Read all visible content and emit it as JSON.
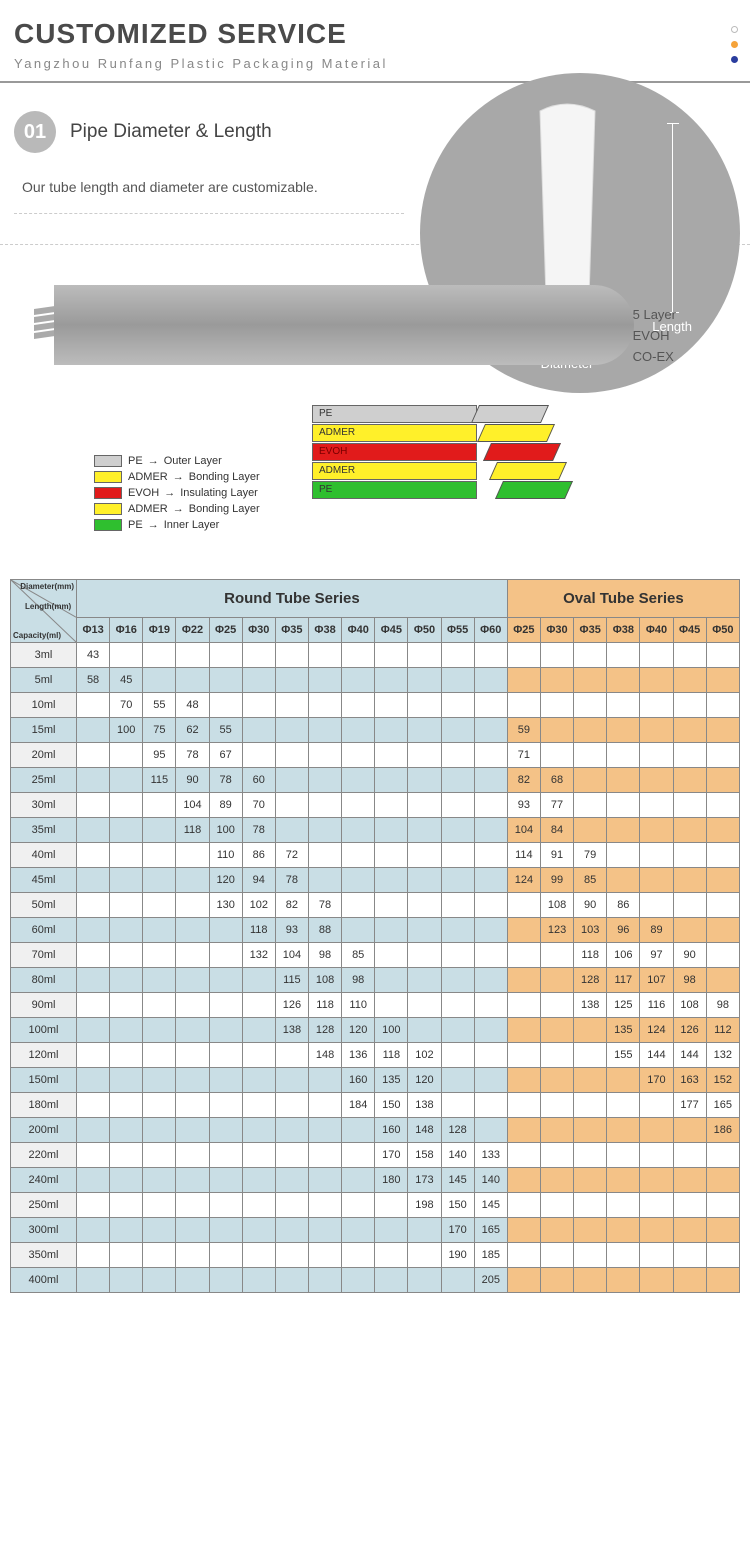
{
  "header": {
    "title": "CUSTOMIZED SERVICE",
    "subtitle": "Yangzhou Runfang Plastic Packaging Material"
  },
  "section1": {
    "num": "01",
    "title": "Pipe Diameter & Length",
    "desc": "Our tube length and diameter are customizable.",
    "dim_length": "Length",
    "dim_diameter": "Diameter"
  },
  "sideLabels": {
    "l1": "5 Layer",
    "l2": "EVOH",
    "l3": "CO-EX"
  },
  "layerColors": {
    "pe": "#cfcfcf",
    "admer": "#fff02a",
    "evoh": "#e11b1b",
    "inner": "#2fbf2f"
  },
  "peel": [
    {
      "label": "PE",
      "color": "#cfcfcf",
      "text": "#333"
    },
    {
      "label": "ADMER",
      "color": "#fff02a",
      "text": "#333"
    },
    {
      "label": "EVOH",
      "color": "#e11b1b",
      "text": "#7a0000"
    },
    {
      "label": "ADMER",
      "color": "#fff02a",
      "text": "#333"
    },
    {
      "label": "PE",
      "color": "#2fbf2f",
      "text": "#333"
    }
  ],
  "legend": [
    {
      "sw": "#cfcfcf",
      "name": "PE",
      "desc": "Outer Layer"
    },
    {
      "sw": "#fff02a",
      "name": "ADMER",
      "desc": "Bonding Layer"
    },
    {
      "sw": "#e11b1b",
      "name": "EVOH",
      "desc": "Insulating Layer"
    },
    {
      "sw": "#fff02a",
      "name": "ADMER",
      "desc": "Bonding Layer"
    },
    {
      "sw": "#2fbf2f",
      "name": "PE",
      "desc": "Inner Layer"
    }
  ],
  "table": {
    "corner": {
      "c1": "Diameter(mm)",
      "c2": "Length(mm)",
      "c3": "Capacity(ml)"
    },
    "roundTitle": "Round Tube Series",
    "ovalTitle": "Oval Tube Series",
    "roundCols": [
      "Φ13",
      "Φ16",
      "Φ19",
      "Φ22",
      "Φ25",
      "Φ30",
      "Φ35",
      "Φ38",
      "Φ40",
      "Φ45",
      "Φ50",
      "Φ55",
      "Φ60"
    ],
    "ovalCols": [
      "Φ25",
      "Φ30",
      "Φ35",
      "Φ38",
      "Φ40",
      "Φ45",
      "Φ50"
    ],
    "rows": [
      {
        "cap": "3ml",
        "shade": true,
        "r": [
          "43",
          "",
          "",
          "",
          "",
          "",
          "",
          "",
          "",
          "",
          "",
          "",
          ""
        ],
        "o": [
          "",
          "",
          "",
          "",
          "",
          "",
          ""
        ]
      },
      {
        "cap": "5ml",
        "shade": false,
        "r": [
          "58",
          "45",
          "",
          "",
          "",
          "",
          "",
          "",
          "",
          "",
          "",
          "",
          ""
        ],
        "o": [
          "",
          "",
          "",
          "",
          "",
          "",
          ""
        ]
      },
      {
        "cap": "10ml",
        "shade": true,
        "r": [
          "",
          "70",
          "55",
          "48",
          "",
          "",
          "",
          "",
          "",
          "",
          "",
          "",
          ""
        ],
        "o": [
          "",
          "",
          "",
          "",
          "",
          "",
          ""
        ]
      },
      {
        "cap": "15ml",
        "shade": false,
        "r": [
          "",
          "100",
          "75",
          "62",
          "55",
          "",
          "",
          "",
          "",
          "",
          "",
          "",
          ""
        ],
        "o": [
          "59",
          "",
          "",
          "",
          "",
          "",
          ""
        ]
      },
      {
        "cap": "20ml",
        "shade": true,
        "r": [
          "",
          "",
          "95",
          "78",
          "67",
          "",
          "",
          "",
          "",
          "",
          "",
          "",
          ""
        ],
        "o": [
          "71",
          "",
          "",
          "",
          "",
          "",
          ""
        ]
      },
      {
        "cap": "25ml",
        "shade": false,
        "r": [
          "",
          "",
          "115",
          "90",
          "78",
          "60",
          "",
          "",
          "",
          "",
          "",
          "",
          ""
        ],
        "o": [
          "82",
          "68",
          "",
          "",
          "",
          "",
          ""
        ]
      },
      {
        "cap": "30ml",
        "shade": true,
        "r": [
          "",
          "",
          "",
          "104",
          "89",
          "70",
          "",
          "",
          "",
          "",
          "",
          "",
          ""
        ],
        "o": [
          "93",
          "77",
          "",
          "",
          "",
          "",
          ""
        ]
      },
      {
        "cap": "35ml",
        "shade": false,
        "r": [
          "",
          "",
          "",
          "118",
          "100",
          "78",
          "",
          "",
          "",
          "",
          "",
          "",
          ""
        ],
        "o": [
          "104",
          "84",
          "",
          "",
          "",
          "",
          ""
        ]
      },
      {
        "cap": "40ml",
        "shade": true,
        "r": [
          "",
          "",
          "",
          "",
          "110",
          "86",
          "72",
          "",
          "",
          "",
          "",
          "",
          ""
        ],
        "o": [
          "114",
          "91",
          "79",
          "",
          "",
          "",
          ""
        ]
      },
      {
        "cap": "45ml",
        "shade": false,
        "r": [
          "",
          "",
          "",
          "",
          "120",
          "94",
          "78",
          "",
          "",
          "",
          "",
          "",
          ""
        ],
        "o": [
          "124",
          "99",
          "85",
          "",
          "",
          "",
          ""
        ]
      },
      {
        "cap": "50ml",
        "shade": true,
        "r": [
          "",
          "",
          "",
          "",
          "130",
          "102",
          "82",
          "78",
          "",
          "",
          "",
          "",
          ""
        ],
        "o": [
          "",
          "108",
          "90",
          "86",
          "",
          "",
          ""
        ]
      },
      {
        "cap": "60ml",
        "shade": false,
        "r": [
          "",
          "",
          "",
          "",
          "",
          "118",
          "93",
          "88",
          "",
          "",
          "",
          "",
          ""
        ],
        "o": [
          "",
          "123",
          "103",
          "96",
          "89",
          "",
          ""
        ]
      },
      {
        "cap": "70ml",
        "shade": true,
        "r": [
          "",
          "",
          "",
          "",
          "",
          "132",
          "104",
          "98",
          "85",
          "",
          "",
          "",
          ""
        ],
        "o": [
          "",
          "",
          "118",
          "106",
          "97",
          "90",
          ""
        ]
      },
      {
        "cap": "80ml",
        "shade": false,
        "r": [
          "",
          "",
          "",
          "",
          "",
          "",
          "115",
          "108",
          "98",
          "",
          "",
          "",
          ""
        ],
        "o": [
          "",
          "",
          "128",
          "117",
          "107",
          "98",
          ""
        ]
      },
      {
        "cap": "90ml",
        "shade": true,
        "r": [
          "",
          "",
          "",
          "",
          "",
          "",
          "126",
          "118",
          "110",
          "",
          "",
          "",
          ""
        ],
        "o": [
          "",
          "",
          "138",
          "125",
          "116",
          "108",
          "98"
        ]
      },
      {
        "cap": "100ml",
        "shade": false,
        "r": [
          "",
          "",
          "",
          "",
          "",
          "",
          "138",
          "128",
          "120",
          "100",
          "",
          "",
          ""
        ],
        "o": [
          "",
          "",
          "",
          "135",
          "124",
          "126",
          "112"
        ]
      },
      {
        "cap": "120ml",
        "shade": true,
        "r": [
          "",
          "",
          "",
          "",
          "",
          "",
          "",
          "148",
          "136",
          "118",
          "102",
          "",
          ""
        ],
        "o": [
          "",
          "",
          "",
          "155",
          "144",
          "144",
          "132"
        ]
      },
      {
        "cap": "150ml",
        "shade": false,
        "r": [
          "",
          "",
          "",
          "",
          "",
          "",
          "",
          "",
          "160",
          "135",
          "120",
          "",
          ""
        ],
        "o": [
          "",
          "",
          "",
          "",
          "170",
          "163",
          "152"
        ]
      },
      {
        "cap": "180ml",
        "shade": true,
        "r": [
          "",
          "",
          "",
          "",
          "",
          "",
          "",
          "",
          "184",
          "150",
          "138",
          "",
          ""
        ],
        "o": [
          "",
          "",
          "",
          "",
          "",
          "177",
          "165"
        ]
      },
      {
        "cap": "200ml",
        "shade": false,
        "r": [
          "",
          "",
          "",
          "",
          "",
          "",
          "",
          "",
          "",
          "160",
          "148",
          "128",
          ""
        ],
        "o": [
          "",
          "",
          "",
          "",
          "",
          "",
          "186"
        ]
      },
      {
        "cap": "220ml",
        "shade": true,
        "r": [
          "",
          "",
          "",
          "",
          "",
          "",
          "",
          "",
          "",
          "170",
          "158",
          "140",
          "133"
        ],
        "o": [
          "",
          "",
          "",
          "",
          "",
          "",
          ""
        ]
      },
      {
        "cap": "240ml",
        "shade": false,
        "r": [
          "",
          "",
          "",
          "",
          "",
          "",
          "",
          "",
          "",
          "180",
          "173",
          "145",
          "140"
        ],
        "o": [
          "",
          "",
          "",
          "",
          "",
          "",
          ""
        ]
      },
      {
        "cap": "250ml",
        "shade": true,
        "r": [
          "",
          "",
          "",
          "",
          "",
          "",
          "",
          "",
          "",
          "",
          "198",
          "150",
          "145"
        ],
        "o": [
          "",
          "",
          "",
          "",
          "",
          "",
          ""
        ]
      },
      {
        "cap": "300ml",
        "shade": false,
        "r": [
          "",
          "",
          "",
          "",
          "",
          "",
          "",
          "",
          "",
          "",
          "",
          "170",
          "165"
        ],
        "o": [
          "",
          "",
          "",
          "",
          "",
          "",
          ""
        ]
      },
      {
        "cap": "350ml",
        "shade": true,
        "r": [
          "",
          "",
          "",
          "",
          "",
          "",
          "",
          "",
          "",
          "",
          "",
          "190",
          "185"
        ],
        "o": [
          "",
          "",
          "",
          "",
          "",
          "",
          ""
        ]
      },
      {
        "cap": "400ml",
        "shade": false,
        "r": [
          "",
          "",
          "",
          "",
          "",
          "",
          "",
          "",
          "",
          "",
          "",
          "",
          "205"
        ],
        "o": [
          "",
          "",
          "",
          "",
          "",
          "",
          ""
        ]
      }
    ]
  }
}
